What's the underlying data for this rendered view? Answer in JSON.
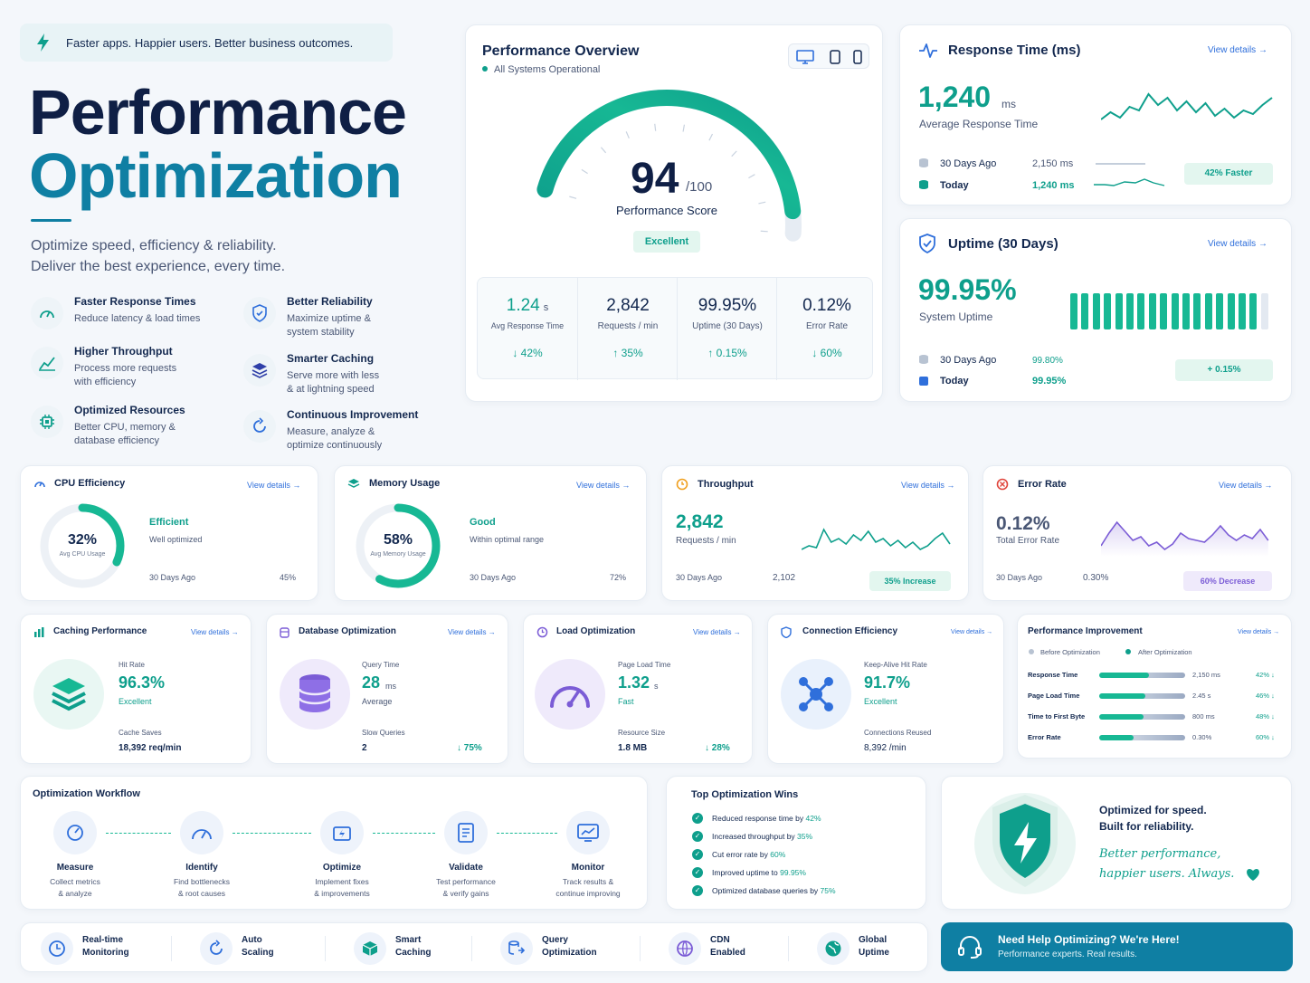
{
  "hero": {
    "banner": "Faster apps. Happier users. Better business outcomes.",
    "title1": "Performance",
    "title2": "Optimization",
    "sub1": "Optimize speed, efficiency & reliability.",
    "sub2": "Deliver the best experience, every time.",
    "features": [
      {
        "t": "Faster Response Times",
        "d1": "Reduce latency & load times",
        "d2": ""
      },
      {
        "t": "Better Reliability",
        "d1": "Maximize uptime &",
        "d2": "system stability"
      },
      {
        "t": "Higher Throughput",
        "d1": "Process more requests",
        "d2": "with efficiency"
      },
      {
        "t": "Smarter Caching",
        "d1": "Serve more with less",
        "d2": "& at lightning speed"
      },
      {
        "t": "Optimized Resources",
        "d1": "Better CPU, memory &",
        "d2": "database efficiency"
      },
      {
        "t": "Continuous Improvement",
        "d1": "Measure, analyze &",
        "d2": "optimize continuously"
      }
    ]
  },
  "overview": {
    "title": "Performance Overview",
    "status": "All Systems Operational",
    "score": "94",
    "max": "/100",
    "label": "Performance Score",
    "badge": "Excellent",
    "score_value": 94,
    "stats": [
      {
        "v": "1.24",
        "u": "s",
        "l": "Avg Response Time",
        "c": "42%"
      },
      {
        "v": "2,842",
        "u": "",
        "l": "Requests / min",
        "c": "35%"
      },
      {
        "v": "99.95%",
        "u": "",
        "l": "Uptime (30 Days)",
        "c": "0.15%"
      },
      {
        "v": "0.12%",
        "u": "",
        "l": "Error Rate",
        "c": "60%"
      }
    ]
  },
  "response": {
    "title": "Response Time (ms)",
    "link": "View details →",
    "value": "1,240",
    "unit": "ms",
    "label": "Average Response Time",
    "r1l": "30 Days Ago",
    "r1v": "2,150 ms",
    "r2l": "Today",
    "r2v": "1,240 ms",
    "badge": "42% Faster"
  },
  "uptime": {
    "title": "Uptime (30 Days)",
    "link": "View details →",
    "value": "99.95%",
    "label": "System Uptime",
    "r1l": "30 Days Ago",
    "r1v": "99.80%",
    "r2l": "Today",
    "r2v": "99.95%",
    "badge": "+ 0.15%"
  },
  "cpu": {
    "title": "CPU Efficiency",
    "link": "View details →",
    "value": "32%",
    "sub": "Avg CPU Usage",
    "status": "Efficient",
    "desc": "Well optimized",
    "ago": "30 Days Ago",
    "agov": "45%",
    "pct": 32
  },
  "mem": {
    "title": "Memory Usage",
    "link": "View details →",
    "value": "58%",
    "sub": "Avg Memory Usage",
    "status": "Good",
    "desc": "Within optimal range",
    "ago": "30 Days Ago",
    "agov": "72%",
    "pct": 58
  },
  "thr": {
    "title": "Throughput",
    "link": "View details →",
    "value": "2,842",
    "label": "Requests / min",
    "ago": "30 Days Ago",
    "agov": "2,102",
    "badge": "35% Increase"
  },
  "err": {
    "title": "Error Rate",
    "link": "View details →",
    "value": "0.12%",
    "label": "Total Error Rate",
    "ago": "30 Days Ago",
    "agov": "0.30%",
    "badge": "60% Decrease"
  },
  "cache": {
    "title": "Caching Performance",
    "link": "View details →",
    "l1": "Hit Rate",
    "v1": "96.3%",
    "s1": "Excellent",
    "l2": "Cache Saves",
    "v2": "18,392 req/min"
  },
  "db": {
    "title": "Database Optimization",
    "link": "View details →",
    "l1": "Query Time",
    "v1": "28",
    "u1": "ms",
    "s1": "Average",
    "l2": "Slow Queries",
    "v2": "2",
    "c2": "↓ 75%"
  },
  "load": {
    "title": "Load Optimization",
    "link": "View details →",
    "l1": "Page Load Time",
    "v1": "1.32",
    "u1": "s",
    "s1": "Fast",
    "l2": "Resource Size",
    "v2": "1.8 MB",
    "c2": "↓ 28%"
  },
  "conn": {
    "title": "Connection Efficiency",
    "link": "View details →",
    "l1": "Keep-Alive Hit Rate",
    "v1": "91.7%",
    "s1": "Excellent",
    "l2": "Connections Reused",
    "v2": "8,392 /min"
  },
  "improve": {
    "title": "Performance Improvement",
    "link": "View details →",
    "before": "Before Optimization",
    "after": "After Optimization",
    "rows": [
      {
        "n": "Response Time",
        "v": "2,150 ms",
        "c": "42% ↓",
        "b": 1.0,
        "a": 0.58
      },
      {
        "n": "Page Load Time",
        "v": "2.45 s",
        "c": "46% ↓",
        "b": 1.0,
        "a": 0.54
      },
      {
        "n": "Time to First Byte",
        "v": "800 ms",
        "c": "48% ↓",
        "b": 1.0,
        "a": 0.52
      },
      {
        "n": "Error Rate",
        "v": "0.30%",
        "c": "60% ↓",
        "b": 1.0,
        "a": 0.4
      }
    ]
  },
  "workflow": {
    "title": "Optimization Workflow",
    "steps": [
      {
        "t": "Measure",
        "d1": "Collect metrics",
        "d2": "& analyze"
      },
      {
        "t": "Identify",
        "d1": "Find bottlenecks",
        "d2": "& root causes"
      },
      {
        "t": "Optimize",
        "d1": "Implement fixes",
        "d2": "& improvements"
      },
      {
        "t": "Validate",
        "d1": "Test performance",
        "d2": "& verify gains"
      },
      {
        "t": "Monitor",
        "d1": "Track results &",
        "d2": "continue improving"
      }
    ]
  },
  "wins": {
    "title": "Top Optimization Wins",
    "items": [
      {
        "t": "Reduced response time by ",
        "h": "42%"
      },
      {
        "t": "Increased throughput by ",
        "h": "35%"
      },
      {
        "t": "Cut error rate by ",
        "h": "60%"
      },
      {
        "t": "Improved uptime to ",
        "h": "99.95%"
      },
      {
        "t": "Optimized database queries by ",
        "h": "75%"
      }
    ]
  },
  "promo": {
    "l1": "Optimized for speed.",
    "l2": "Built for reliability.",
    "s1": "Better performance,",
    "s2": "happier users. Always."
  },
  "footer": [
    {
      "a": "Real-time",
      "b": "Monitoring"
    },
    {
      "a": "Auto",
      "b": "Scaling"
    },
    {
      "a": "Smart",
      "b": "Caching"
    },
    {
      "a": "Query",
      "b": "Optimization"
    },
    {
      "a": "CDN",
      "b": "Enabled"
    },
    {
      "a": "Global",
      "b": "Uptime"
    }
  ],
  "help": {
    "title": "Need Help Optimizing? We're Here!",
    "sub": "Performance experts. Real results."
  },
  "colors": {
    "teal": "#0e9f8c",
    "navy": "#13284f",
    "blue": "#2f6fdb",
    "purple": "#7b5cd6"
  }
}
